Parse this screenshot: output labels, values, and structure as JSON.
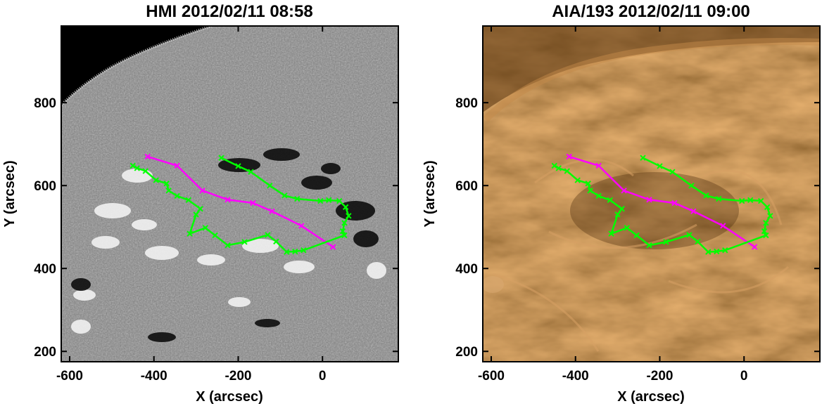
{
  "panels": [
    {
      "title": "HMI 2012/02/11 08:58",
      "xlabel": "X (arcsec)",
      "ylabel": "Y (arcsec)",
      "image_kind": "magnetogram-grayscale",
      "limb_offlimb_color": "#000000"
    },
    {
      "title": "AIA/193 2012/02/11 09:00",
      "xlabel": "X (arcsec)",
      "ylabel": "Y (arcsec)",
      "image_kind": "euv-193-brown"
    }
  ],
  "axes": {
    "xlim": [
      -620,
      180
    ],
    "ylim": [
      175,
      985
    ],
    "xticks": [
      "-600",
      "-400",
      "-200",
      "0"
    ],
    "xtick_values": [
      -600,
      -400,
      -200,
      0
    ],
    "yticks": [
      "200",
      "400",
      "600",
      "800"
    ],
    "ytick_values": [
      200,
      400,
      600,
      800
    ]
  },
  "colors": {
    "magenta_line": "#ff00ff",
    "green_line": "#00ff00",
    "hmi_background": "#7d7d7d",
    "aia_background": "#8a5a26"
  },
  "overlay": {
    "magenta": [
      [
        -415,
        670
      ],
      [
        -345,
        648
      ],
      [
        -285,
        588
      ],
      [
        -225,
        566
      ],
      [
        -165,
        558
      ],
      [
        -120,
        538
      ],
      [
        -50,
        503
      ],
      [
        25,
        452
      ]
    ],
    "green": [
      [
        -240,
        667
      ],
      [
        -200,
        647
      ],
      [
        -170,
        633
      ],
      [
        -125,
        600
      ],
      [
        -90,
        576
      ],
      [
        -60,
        568
      ],
      [
        -5,
        563
      ],
      [
        15,
        565
      ],
      [
        40,
        563
      ],
      [
        55,
        548
      ],
      [
        62,
        527
      ],
      [
        52,
        510
      ],
      [
        48,
        490
      ],
      [
        52,
        480
      ],
      [
        -45,
        444
      ],
      [
        -65,
        441
      ],
      [
        -85,
        440
      ],
      [
        -110,
        465
      ],
      [
        -130,
        481
      ],
      [
        -185,
        464
      ],
      [
        -225,
        456
      ],
      [
        -255,
        480
      ],
      [
        -278,
        498
      ],
      [
        -315,
        484
      ],
      [
        -300,
        530
      ],
      [
        -290,
        544
      ],
      [
        -318,
        565
      ],
      [
        -345,
        575
      ],
      [
        -365,
        588
      ],
      [
        -370,
        605
      ],
      [
        -395,
        613
      ],
      [
        -420,
        635
      ],
      [
        -440,
        642
      ],
      [
        -450,
        648
      ]
    ]
  }
}
